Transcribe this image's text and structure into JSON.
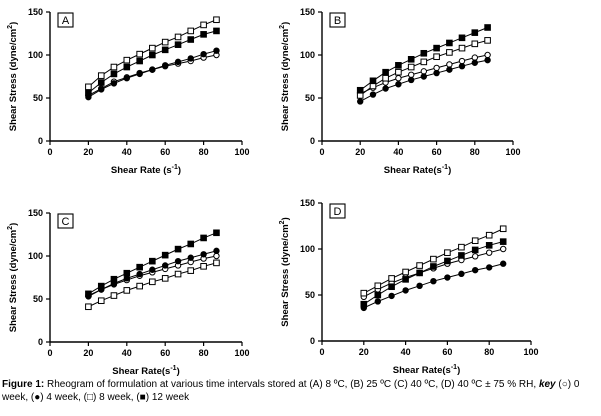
{
  "chart_data": [
    {
      "type": "line",
      "panel_label": "A",
      "xlabel": "Shear Rate (s⁻¹)",
      "ylabel": "Shear Stress (dyne/cm²)",
      "xlim": [
        0,
        100
      ],
      "ylim": [
        0,
        150
      ],
      "xticks": [
        0,
        20,
        40,
        60,
        80,
        100
      ],
      "yticks": [
        0,
        50,
        100,
        150
      ],
      "x": [
        20,
        26.7,
        33.3,
        40,
        46.7,
        53.3,
        60,
        66.7,
        73.3,
        80,
        86.7
      ],
      "series": [
        {
          "marker": "open-circle",
          "values": [
            53,
            61,
            69,
            74,
            79,
            83,
            87,
            90,
            93,
            97,
            100
          ]
        },
        {
          "marker": "filled-circle",
          "values": [
            51,
            60,
            67,
            73,
            78,
            83,
            88,
            92,
            96,
            101,
            105
          ]
        },
        {
          "marker": "open-square",
          "values": [
            63,
            76,
            86,
            94,
            101,
            108,
            115,
            121,
            128,
            135,
            141
          ]
        },
        {
          "marker": "filled-square",
          "values": [
            56,
            68,
            78,
            86,
            93,
            100,
            106,
            112,
            118,
            124,
            128
          ]
        }
      ]
    },
    {
      "type": "line",
      "panel_label": "B",
      "xlabel": "Shear Rate(s⁻¹)",
      "ylabel": "Shear Stress (dyne/cm²)",
      "xlim": [
        0,
        100
      ],
      "ylim": [
        0,
        150
      ],
      "xticks": [
        0,
        20,
        40,
        60,
        80,
        100
      ],
      "yticks": [
        0,
        50,
        100,
        150
      ],
      "x": [
        20,
        26.7,
        33.3,
        40,
        46.7,
        53.3,
        60,
        66.7,
        73.3,
        80,
        86.7
      ],
      "series": [
        {
          "marker": "open-circle",
          "values": [
            55,
            62,
            68,
            73,
            77,
            81,
            85,
            89,
            93,
            97,
            100
          ]
        },
        {
          "marker": "filled-circle",
          "values": [
            46,
            54,
            61,
            66,
            71,
            75,
            79,
            83,
            87,
            91,
            94
          ]
        },
        {
          "marker": "open-square",
          "values": [
            53,
            64,
            73,
            80,
            86,
            92,
            98,
            103,
            108,
            113,
            117
          ]
        },
        {
          "marker": "filled-square",
          "values": [
            59,
            70,
            80,
            88,
            95,
            102,
            108,
            114,
            120,
            126,
            132
          ]
        }
      ]
    },
    {
      "type": "line",
      "panel_label": "C",
      "xlabel": "Shear Rate(s⁻¹)",
      "ylabel": "Shear Stress (dyne/cm²)",
      "xlim": [
        0,
        100
      ],
      "ylim": [
        0,
        150
      ],
      "xticks": [
        0,
        20,
        40,
        60,
        80,
        100
      ],
      "yticks": [
        0,
        50,
        100,
        150
      ],
      "x": [
        20,
        26.7,
        33.3,
        40,
        46.7,
        53.3,
        60,
        66.7,
        73.3,
        80,
        86.7
      ],
      "series": [
        {
          "marker": "open-circle",
          "values": [
            54,
            61,
            67,
            72,
            77,
            81,
            85,
            89,
            93,
            97,
            100
          ]
        },
        {
          "marker": "filled-circle",
          "values": [
            53,
            61,
            68,
            74,
            79,
            84,
            89,
            94,
            98,
            102,
            106
          ]
        },
        {
          "marker": "open-square",
          "values": [
            41,
            48,
            54,
            60,
            65,
            70,
            74,
            79,
            83,
            88,
            92
          ]
        },
        {
          "marker": "filled-square",
          "values": [
            56,
            65,
            73,
            80,
            87,
            94,
            101,
            108,
            114,
            121,
            127
          ]
        }
      ]
    },
    {
      "type": "line",
      "panel_label": "D",
      "xlabel": "Shear Rate(s⁻¹)",
      "ylabel": "Shear Stress (dyne/cm²)",
      "xlim": [
        0,
        100
      ],
      "ylim": [
        0,
        150
      ],
      "xticks": [
        0,
        20,
        40,
        60,
        80,
        100
      ],
      "yticks": [
        0,
        50,
        100,
        150
      ],
      "x": [
        20,
        26.7,
        33.3,
        40,
        46.7,
        53.3,
        60,
        66.7,
        73.3,
        80,
        86.7
      ],
      "series": [
        {
          "marker": "open-circle",
          "values": [
            48,
            56,
            63,
            69,
            74,
            79,
            84,
            88,
            92,
            96,
            100
          ]
        },
        {
          "marker": "filled-circle",
          "values": [
            36,
            43,
            49,
            55,
            60,
            65,
            69,
            73,
            77,
            80,
            84
          ]
        },
        {
          "marker": "open-square",
          "values": [
            52,
            60,
            68,
            75,
            82,
            89,
            96,
            102,
            109,
            115,
            122
          ]
        },
        {
          "marker": "filled-square",
          "values": [
            40,
            50,
            59,
            67,
            74,
            81,
            87,
            93,
            99,
            104,
            108
          ]
        }
      ]
    }
  ],
  "caption": {
    "label": "Figure 1:",
    "text_1": " Rheogram of formulation at various time intervals stored at (A) 8 ºC, (B) 25 ºC (C) 40 ºC, (D) 40 ºC ± 75 % RH, ",
    "key_label": "key",
    "text_2": " (○) 0 week, (●) 4 week, (□) 8 week, (■) 12 week"
  }
}
